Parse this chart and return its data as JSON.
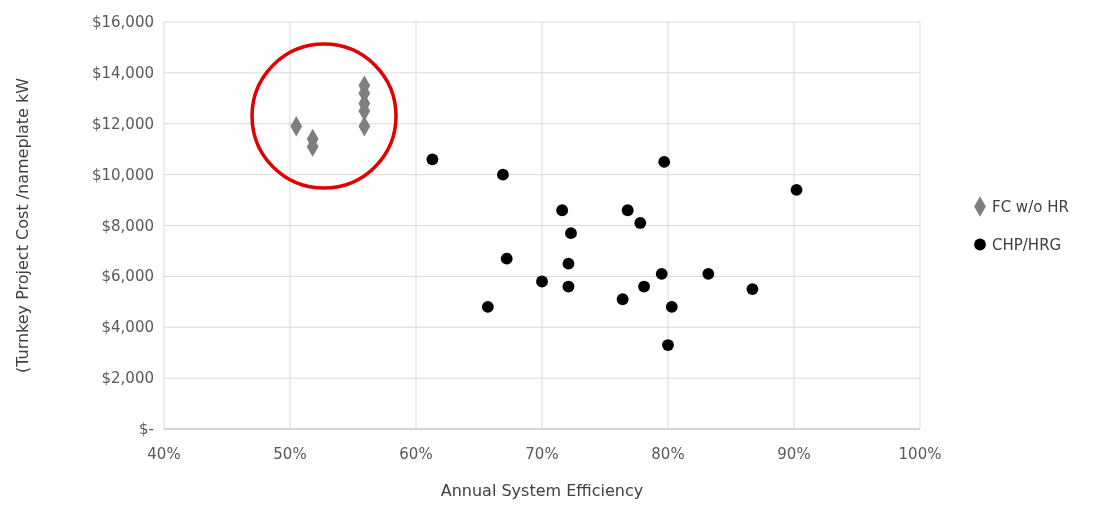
{
  "chart_data": {
    "type": "scatter",
    "xlabel": "Annual System Efficiency",
    "ylabel": "(Turnkey Project Cost /nameplate kW",
    "xlim": [
      40,
      100
    ],
    "xticks": [
      {
        "value": 40,
        "label": "40%"
      },
      {
        "value": 50,
        "label": "50%"
      },
      {
        "value": 60,
        "label": "60%"
      },
      {
        "value": 70,
        "label": "70%"
      },
      {
        "value": 80,
        "label": "80%"
      },
      {
        "value": 90,
        "label": "90%"
      },
      {
        "value": 100,
        "label": "100%"
      }
    ],
    "ylim": [
      0,
      16000
    ],
    "yticks": [
      {
        "value": 0,
        "label": "$-"
      },
      {
        "value": 2000,
        "label": "$2,000"
      },
      {
        "value": 4000,
        "label": "$4,000"
      },
      {
        "value": 6000,
        "label": "$6,000"
      },
      {
        "value": 8000,
        "label": "$8,000"
      },
      {
        "value": 10000,
        "label": "$10,000"
      },
      {
        "value": 12000,
        "label": "$12,000"
      },
      {
        "value": 14000,
        "label": "$14,000"
      },
      {
        "value": 16000,
        "label": "$16,000"
      }
    ],
    "grid": true,
    "legend": "right",
    "series": [
      {
        "name": "FC w/o HR",
        "color": "#7f7f7f",
        "marker": "diamond",
        "x": [
          50.5,
          51.8,
          51.8,
          55.9,
          55.9,
          55.9,
          55.9,
          55.9
        ],
        "values": [
          11900,
          11400,
          11100,
          13500,
          13200,
          12800,
          12500,
          11900
        ]
      },
      {
        "name": "CHP/HRG",
        "color": "#000000",
        "marker": "circle",
        "x": [
          61.3,
          66.9,
          71.6,
          76.8,
          77.8,
          72.3,
          67.2,
          72.1,
          79.5,
          70.0,
          72.1,
          78.1,
          65.7,
          76.4,
          80.3,
          79.7,
          90.2,
          83.2,
          86.7,
          80.0
        ],
        "values": [
          10600,
          10000,
          8600,
          8600,
          8100,
          7700,
          6700,
          6500,
          6100,
          5800,
          5600,
          5600,
          4800,
          5100,
          4800,
          10500,
          9400,
          6100,
          5500,
          3300
        ]
      }
    ]
  }
}
